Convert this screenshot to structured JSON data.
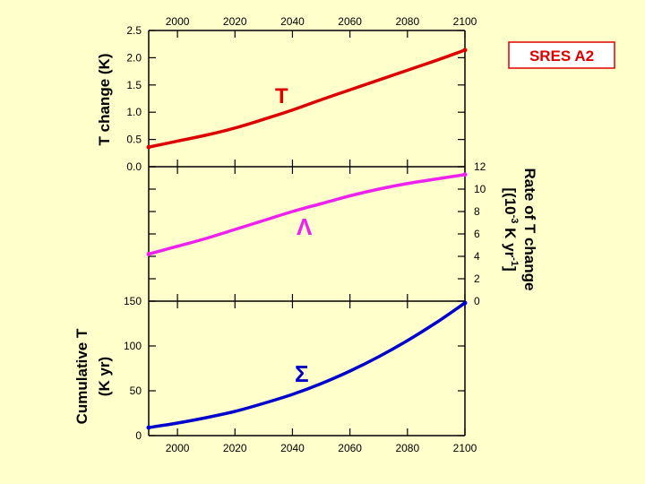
{
  "chart_data": [
    {
      "type": "line",
      "panel": "top",
      "series_name": "T",
      "label": "T",
      "color": "#dd0000",
      "ylabel": "T change (K)",
      "ylim": [
        0.0,
        2.5
      ],
      "yticks": [
        0.0,
        0.5,
        1.0,
        1.5,
        2.0,
        2.5
      ],
      "ytick_labels": [
        "0.0",
        "0.5",
        "1.0",
        "1.5",
        "2.0",
        "2.5"
      ],
      "xlim": [
        1990,
        2100
      ],
      "xticks": [
        2000,
        2020,
        2040,
        2060,
        2080,
        2100
      ],
      "xtick_labels": [
        "2000",
        "2020",
        "2040",
        "2060",
        "2080",
        "2100"
      ],
      "x": [
        1990,
        2000,
        2010,
        2020,
        2030,
        2040,
        2050,
        2060,
        2070,
        2080,
        2090,
        2100
      ],
      "y": [
        0.36,
        0.47,
        0.58,
        0.71,
        0.87,
        1.04,
        1.23,
        1.41,
        1.59,
        1.77,
        1.95,
        2.14
      ]
    },
    {
      "type": "line",
      "panel": "middle",
      "series_name": "Lambda",
      "label": "Λ",
      "color": "#ee22ee",
      "ylabel": "Rate of T change [(10-3 K yr-1]",
      "ylim": [
        0,
        12
      ],
      "yticks": [
        0,
        2,
        4,
        6,
        8,
        10,
        12
      ],
      "ytick_labels": [
        "0",
        "2",
        "4",
        "6",
        "8",
        "10",
        "12"
      ],
      "xlim": [
        1990,
        2100
      ],
      "x": [
        1990,
        2000,
        2010,
        2020,
        2030,
        2040,
        2050,
        2060,
        2070,
        2080,
        2090,
        2100
      ],
      "y": [
        4.2,
        4.9,
        5.6,
        6.4,
        7.2,
        8.0,
        8.7,
        9.4,
        10.0,
        10.5,
        10.9,
        11.3
      ]
    },
    {
      "type": "line",
      "panel": "bottom",
      "series_name": "Sigma",
      "label": "Σ",
      "color": "#0000cc",
      "ylabel": "Cumulative T (K yr)",
      "ylim": [
        0,
        150
      ],
      "yticks": [
        0,
        50,
        100,
        150
      ],
      "ytick_labels": [
        "0",
        "50",
        "100",
        "150"
      ],
      "xlim": [
        1990,
        2100
      ],
      "xticks": [
        2000,
        2020,
        2040,
        2060,
        2080,
        2100
      ],
      "xtick_labels": [
        "2000",
        "2020",
        "2040",
        "2060",
        "2080",
        "2100"
      ],
      "x": [
        1990,
        2000,
        2010,
        2020,
        2030,
        2040,
        2050,
        2060,
        2070,
        2080,
        2090,
        2100
      ],
      "y": [
        9,
        14,
        20,
        27,
        36,
        46,
        58,
        72,
        88,
        106,
        126,
        148
      ]
    }
  ],
  "scenario_label": "SRES A2",
  "right_axis_title_line1": "Rate of T change",
  "right_axis_title_line2": "[(10",
  "right_axis_title_exp1": "-3",
  "right_axis_title_line2b": " K yr",
  "right_axis_title_exp2": "-1",
  "right_axis_title_line2c": "]",
  "left_axis_title_top": "T change (K)",
  "left_axis_title_bottom_line1": "Cumulative T",
  "left_axis_title_bottom_line2": "(K yr)",
  "colors": {
    "background": "#ffffcc",
    "scenario_border": "#dd0000"
  }
}
